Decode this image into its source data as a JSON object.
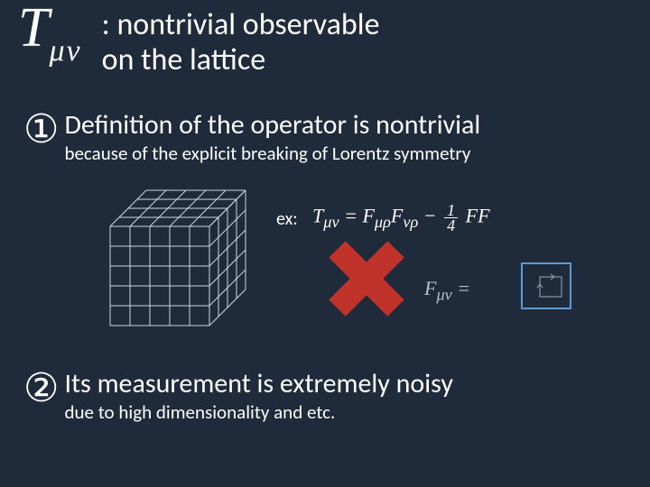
{
  "title": {
    "tensor_T": "T",
    "tensor_sub": "μν",
    "line1": ": nontrivial observable",
    "line2": "on the lattice"
  },
  "point1": {
    "number": "①",
    "head": "Definition of the operator is nontrivial",
    "sub": "because of the explicit breaking of Lorentz symmetry"
  },
  "point2": {
    "number": "②",
    "head": "Its measurement is extremely noisy",
    "sub": "due to high dimensionality and etc."
  },
  "example": {
    "label": "ex:",
    "formula1_html": "T<sub>μν</sub> = F<sub>μρ</sub>F<sub>νρ</sub> − <span class='frac'><span class='n'>1</span><span class='d'>4</span></span> FF",
    "formula2_html": "F<sub>μν</sub> ="
  },
  "style": {
    "background": "#1f2a3a",
    "text_color": "#ffffff",
    "cube": {
      "stroke": "#c9d4e4",
      "n": 5,
      "size": 22,
      "depth_dx": 10,
      "depth_dy": -10,
      "depth_steps": 4
    },
    "cross": {
      "color": "#c0332b",
      "size": 92,
      "thickness": 26
    },
    "plaquette_box_border": "#5b9bd5",
    "plaquette_arrow_color": "#cfd9e8",
    "title_fontsize": 34,
    "head_fontsize": 30,
    "sub_fontsize": 21
  }
}
